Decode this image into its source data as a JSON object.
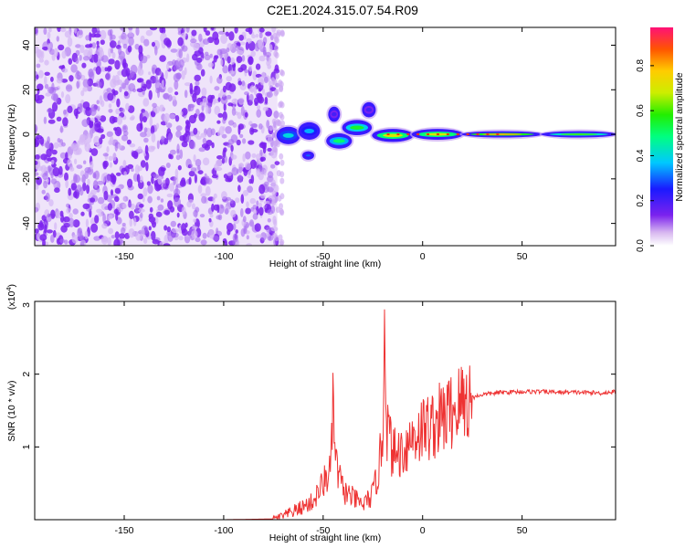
{
  "title": "C2E1.2024.315.07.54.R09",
  "chart_data": [
    {
      "type": "heatmap",
      "xlabel": "Height of straight line (km)",
      "ylabel": "Frequency (Hz)",
      "xlim": [
        -195,
        97
      ],
      "ylim": [
        -50,
        48
      ],
      "xticks": [
        -150,
        -100,
        -50,
        0,
        50
      ],
      "xtick_labels": [
        "-150",
        "-100",
        "-50",
        "0",
        "50"
      ],
      "yticks": [
        -40,
        -20,
        0,
        20,
        40
      ],
      "ytick_labels": [
        "-40",
        "-20",
        "0",
        "20",
        "40"
      ],
      "colorbar": {
        "label": "Normalized spectral amplitude",
        "range": [
          0,
          0.97
        ],
        "ticks": [
          0.0,
          0.2,
          0.4,
          0.6,
          0.8
        ],
        "tick_labels": [
          "0.0",
          "0.2",
          "0.4",
          "0.6",
          "0.8"
        ]
      },
      "noise_region_x": [
        -195,
        -73
      ],
      "features": [
        {
          "x0": -73,
          "x1": -62,
          "y0": -4,
          "y1": 3,
          "amplitude": 0.4
        },
        {
          "x0": -62,
          "x1": -52,
          "y0": -2,
          "y1": 5,
          "amplitude": 0.35
        },
        {
          "x0": -47,
          "x1": -42,
          "y0": 6,
          "y1": 12,
          "amplitude": 0.2
        },
        {
          "x0": -60,
          "x1": -55,
          "y0": -11,
          "y1": -8,
          "amplitude": 0.3
        },
        {
          "x0": -48,
          "x1": -36,
          "y0": -6,
          "y1": 0,
          "amplitude": 0.5
        },
        {
          "x0": -40,
          "x1": -26,
          "y0": 0,
          "y1": 6,
          "amplitude": 0.55
        },
        {
          "x0": -30,
          "x1": -24,
          "y0": 8,
          "y1": 14,
          "amplitude": 0.2
        },
        {
          "x0": -25,
          "x1": -5,
          "y0": -3,
          "y1": 2,
          "amplitude": 0.7
        },
        {
          "x0": -5,
          "x1": 20,
          "y0": -2,
          "y1": 2,
          "amplitude": 0.7
        },
        {
          "x0": 20,
          "x1": 60,
          "y0": -1,
          "y1": 1,
          "amplitude": 0.8
        },
        {
          "x0": 60,
          "x1": 97,
          "y0": -1,
          "y1": 1,
          "amplitude": 0.6
        }
      ]
    },
    {
      "type": "line",
      "xlabel": "Height of straight line (km)",
      "ylabel": "SNR (10 * v/v)",
      "scale_label": "(x10",
      "scale_exponent": "4",
      "scale_suffix": ")",
      "xlim": [
        -195,
        97
      ],
      "ylim": [
        0,
        3
      ],
      "xticks": [
        -150,
        -100,
        -50,
        0,
        50
      ],
      "xtick_labels": [
        "-150",
        "-100",
        "-50",
        "0",
        "50"
      ],
      "yticks": [
        1,
        2,
        3
      ],
      "ytick_labels": [
        "1",
        "2",
        "3"
      ],
      "line_color": "#ee3333",
      "series": [
        {
          "x": [
            -195,
            -150,
            -100,
            -75,
            -70,
            -62,
            -55,
            -50,
            -46,
            -45,
            -44,
            -40,
            -35,
            -30,
            -25,
            -22,
            -20,
            -19,
            -18,
            -15,
            -10,
            -5,
            0,
            5,
            10,
            15,
            20,
            25,
            30,
            40,
            50,
            60,
            70,
            80,
            90,
            97
          ],
          "y": [
            0.0,
            0.0,
            0.0,
            0.01,
            0.05,
            0.15,
            0.25,
            0.5,
            0.7,
            1.8,
            0.8,
            0.4,
            0.3,
            0.2,
            0.35,
            0.7,
            1.2,
            3.0,
            1.3,
            0.9,
            0.95,
            1.15,
            1.25,
            1.3,
            1.4,
            1.5,
            1.62,
            1.68,
            1.72,
            1.75,
            1.76,
            1.76,
            1.75,
            1.75,
            1.74,
            1.76
          ]
        }
      ]
    }
  ]
}
